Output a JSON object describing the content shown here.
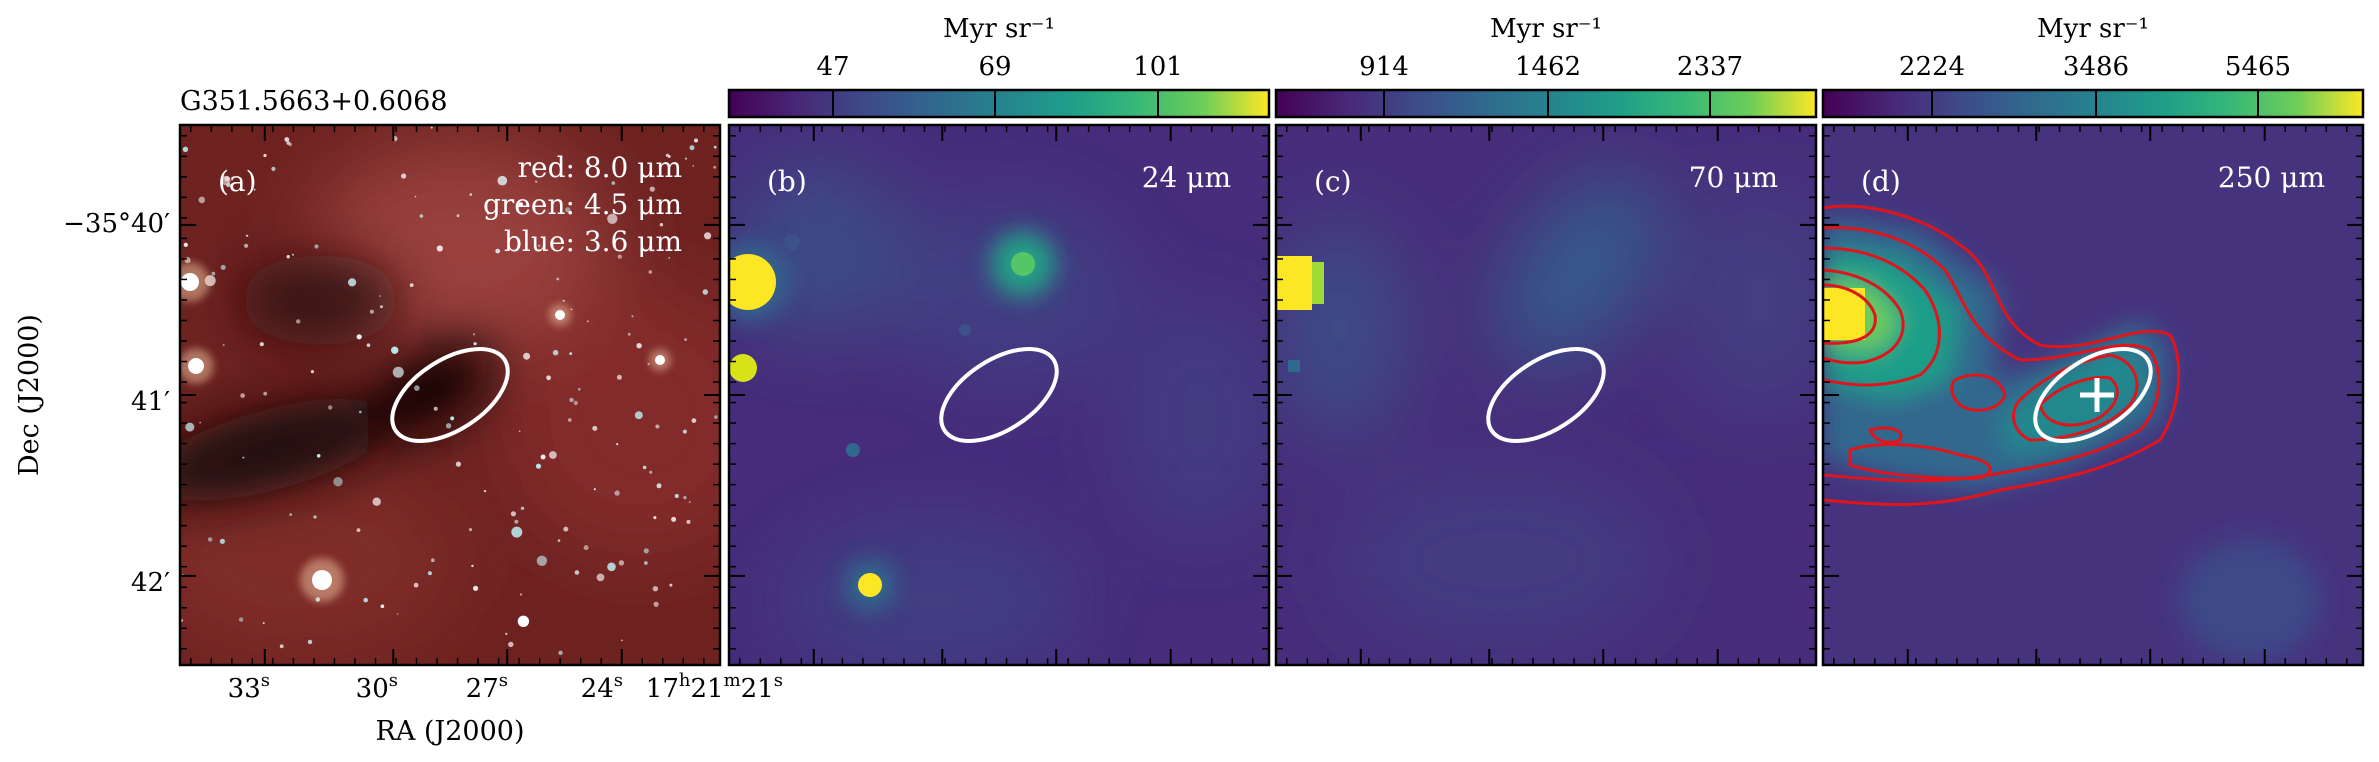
{
  "figure": {
    "source_name": "G351.5663+0.6068",
    "ra_label": "RA (J2000)",
    "dec_label": "Dec (J2000)",
    "ra_ticks": [
      {
        "h": "",
        "m": "",
        "s": "33",
        "hs": "",
        "ms": "",
        "ss": "s"
      },
      {
        "h": "",
        "m": "",
        "s": "30",
        "hs": "",
        "ms": "",
        "ss": "s"
      },
      {
        "h": "",
        "m": "",
        "s": "27",
        "hs": "",
        "ms": "",
        "ss": "s"
      },
      {
        "h": "",
        "m": "",
        "s": "24",
        "hs": "",
        "ms": "",
        "ss": "s"
      },
      {
        "h": "17",
        "m": "21",
        "s": "21",
        "hs": "h",
        "ms": "m",
        "ss": "s"
      }
    ],
    "dec_ticks": [
      {
        "deg": "−35°",
        "min": "40′"
      },
      {
        "deg": "",
        "min": "41′"
      },
      {
        "deg": "",
        "min": "42′"
      }
    ],
    "colors": {
      "ellipse": "#ffffff",
      "contour": "#e0151c",
      "marker": "#ffffff",
      "viridis_low": "#440154",
      "viridis_high": "#fde725"
    }
  },
  "panels": [
    {
      "letter": "(a)",
      "info": [
        "red: 8.0 μm",
        "green: 4.5 μm",
        "blue: 3.6 μm"
      ],
      "image": "rgb-composite"
    },
    {
      "letter": "(b)",
      "info": [
        "24 μm"
      ],
      "image": "viridis-map",
      "colorbar": {
        "unit": "Myr sr⁻¹",
        "ticks": [
          "47",
          "69",
          "101"
        ]
      }
    },
    {
      "letter": "(c)",
      "info": [
        "70 μm"
      ],
      "image": "viridis-map",
      "colorbar": {
        "unit": "Myr sr⁻¹",
        "ticks": [
          "914",
          "1462",
          "2337"
        ]
      }
    },
    {
      "letter": "(d)",
      "info": [
        "250 μm"
      ],
      "image": "viridis-map-with-contours",
      "colorbar": {
        "unit": "Myr sr⁻¹",
        "ticks": [
          "2224",
          "3486",
          "5465"
        ]
      }
    }
  ],
  "chart_data": {
    "type": "heatmap",
    "title": "G351.5663+0.6068",
    "xlabel": "RA (J2000)",
    "ylabel": "Dec (J2000)",
    "x_ticks": [
      "33s",
      "30s",
      "27s",
      "24s",
      "17h21m21s"
    ],
    "y_ticks": [
      "−35°40′",
      "41′",
      "42′"
    ],
    "panels": [
      {
        "label": "(a)",
        "bands": [
          "red: 8.0 μm",
          "green: 4.5 μm",
          "blue: 3.6 μm"
        ]
      },
      {
        "label": "(b)",
        "band": "24 μm",
        "colorbar_unit": "Myr sr⁻¹",
        "colorbar_ticks": [
          47,
          69,
          101
        ]
      },
      {
        "label": "(c)",
        "band": "70 μm",
        "colorbar_unit": "Myr sr⁻¹",
        "colorbar_ticks": [
          914,
          1462,
          2337
        ]
      },
      {
        "label": "(d)",
        "band": "250 μm",
        "colorbar_unit": "Myr sr⁻¹",
        "colorbar_ticks": [
          2224,
          3486,
          5465
        ]
      }
    ],
    "grid": false,
    "legend": "none"
  }
}
